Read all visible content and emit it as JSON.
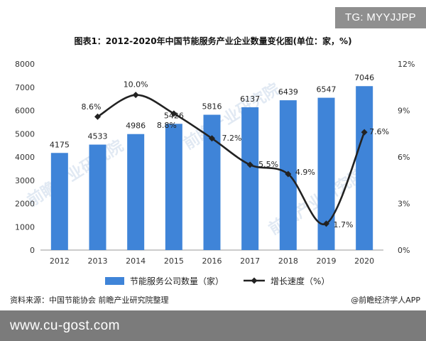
{
  "watermark_badge": "TG: MYYJJPP",
  "chart_title": "图表1：2012-2020年中国节能服务产业企业数量变化图(单位：家，%)",
  "source_text": "资料来源：中国节能协会 前瞻产业研究院整理",
  "credit_text": "@前瞻经济学人APP",
  "footer_url": "www.cu-gost.com",
  "background_watermark": "前瞻产业研究院",
  "colors": {
    "bar": "#3f84d8",
    "line": "#222222",
    "badge_bg": "#8f8f8f",
    "footer_bg": "#7b7b7b"
  },
  "chart_data": {
    "type": "bar+line",
    "categories": [
      "2012",
      "2013",
      "2014",
      "2015",
      "2016",
      "2017",
      "2018",
      "2019",
      "2020"
    ],
    "series": [
      {
        "name": "节能服务公司数量（家）",
        "type": "bar",
        "axis": "left",
        "values": [
          4175,
          4533,
          4986,
          5426,
          5816,
          6137,
          6439,
          6547,
          7046
        ],
        "labels": [
          "4175",
          "4533",
          "4986",
          "5426",
          "5816",
          "6137",
          "6439",
          "6547",
          "7046"
        ]
      },
      {
        "name": "增长速度（%）",
        "type": "line",
        "axis": "right",
        "values": [
          null,
          8.6,
          10.0,
          8.8,
          7.2,
          5.5,
          4.9,
          1.7,
          7.6
        ],
        "labels": [
          "",
          "8.6%",
          "10.0%",
          "8.8%",
          "7.2%",
          "5.5%",
          "4.9%",
          "1.7%",
          "7.6%"
        ]
      }
    ],
    "y_left": {
      "min": 0,
      "max": 8000,
      "ticks": [
        "0",
        "1000",
        "2000",
        "3000",
        "4000",
        "5000",
        "6000",
        "7000",
        "8000"
      ]
    },
    "y_right": {
      "min": 0,
      "max": 12,
      "ticks": [
        "0%",
        "3%",
        "6%",
        "9%",
        "12%"
      ]
    },
    "grid": false,
    "legend_position": "bottom"
  }
}
